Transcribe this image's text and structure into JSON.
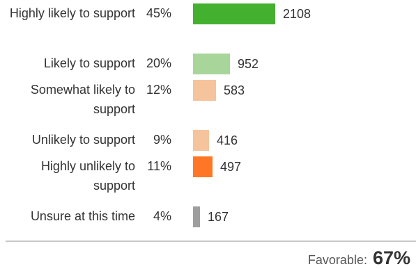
{
  "chart_data": {
    "type": "bar",
    "orientation": "horizontal",
    "categories": [
      "Highly likely to support",
      "Likely to support",
      "Somewhat likely to support",
      "Unlikely to support",
      "Highly unlikely to support",
      "Unsure at this time"
    ],
    "percentages": [
      "45%",
      "20%",
      "12%",
      "9%",
      "11%",
      "4%"
    ],
    "values": [
      2108,
      952,
      583,
      416,
      497,
      167
    ],
    "colors": [
      "#44b030",
      "#a8d69a",
      "#f5c39c",
      "#f5c39c",
      "#ff7726",
      "#9e9e9e"
    ],
    "xlim": [
      0,
      2108
    ],
    "grid": false,
    "legend": "none"
  },
  "summary": {
    "label": "Favorable:",
    "value": "67%"
  }
}
